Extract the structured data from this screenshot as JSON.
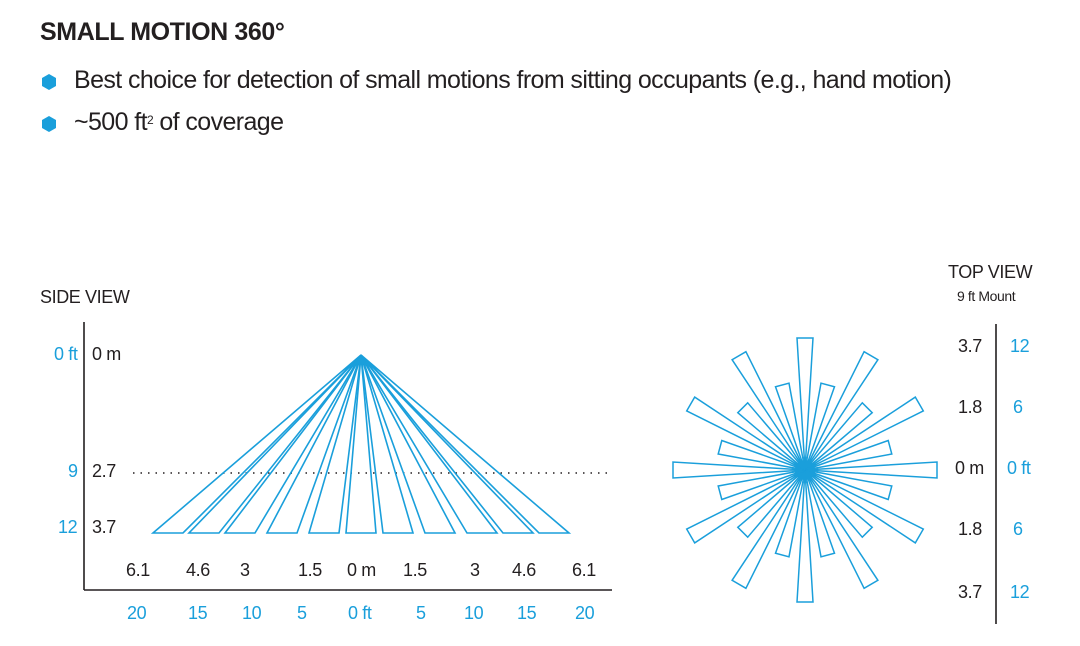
{
  "heading": "SMALL MOTION 360°",
  "bullets": [
    {
      "text": "Best choice for detection of small motions from sitting occupants (e.g., hand motion)"
    },
    {
      "text_pre": "~500 ft",
      "sup": "2",
      "text_post": " of coverage"
    }
  ],
  "colors": {
    "accent": "#1a9fdb",
    "text": "#231f20"
  },
  "side_view": {
    "title": "SIDE VIEW",
    "left_ft": [
      "0 ft",
      "9",
      "12"
    ],
    "left_m": [
      "0 m",
      "2.7",
      "3.7"
    ],
    "bottom_m": [
      "6.1",
      "4.6",
      "3",
      "1.5",
      "0 m",
      "1.5",
      "3",
      "4.6",
      "6.1"
    ],
    "bottom_ft": [
      "20",
      "15",
      "10",
      "5",
      "0 ft",
      "5",
      "10",
      "15",
      "20"
    ]
  },
  "top_view": {
    "title": "TOP VIEW",
    "subtitle": "9 ft Mount",
    "right_m": [
      "3.7",
      "1.8",
      "0 m",
      "1.8",
      "3.7"
    ],
    "right_ft": [
      "12",
      "6",
      "0 ft",
      "6",
      "12"
    ]
  }
}
